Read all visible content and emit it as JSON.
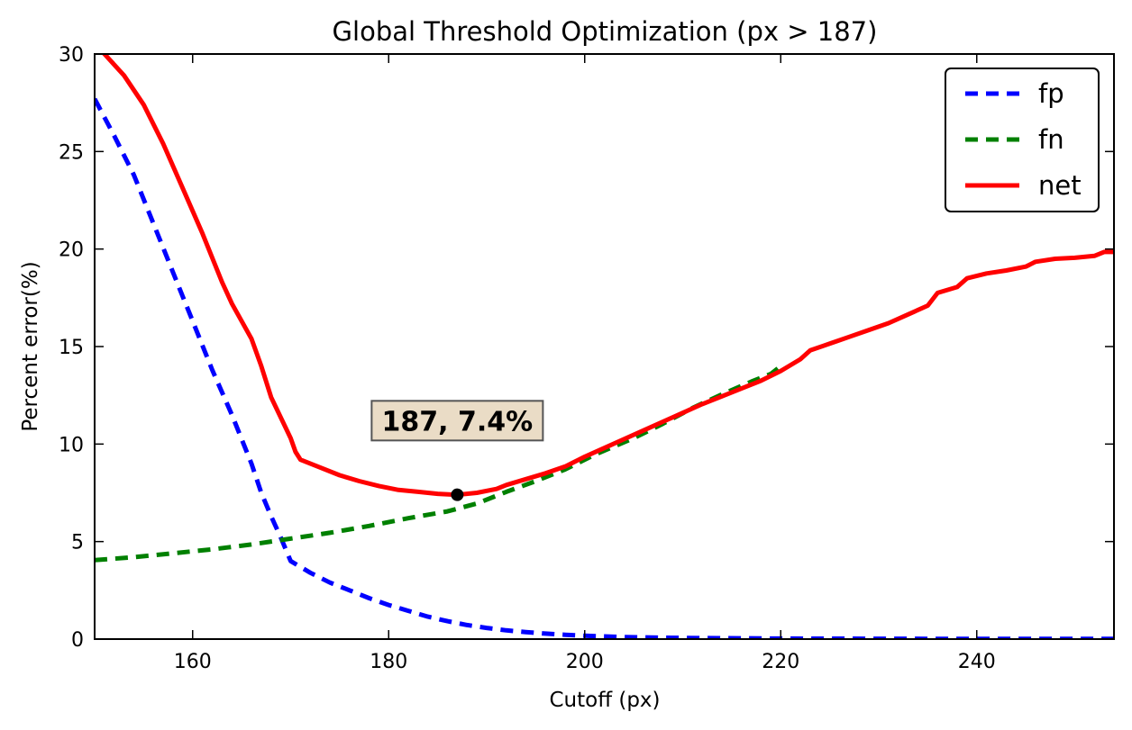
{
  "chart_data": {
    "type": "line",
    "title": "Global Threshold Optimization (px > 187)",
    "xlabel": "Cutoff (px)",
    "ylabel": "Percent error(%)",
    "xlim": [
      150,
      254
    ],
    "ylim": [
      0,
      30
    ],
    "xticks": [
      160,
      180,
      200,
      220,
      240
    ],
    "yticks": [
      0,
      5,
      10,
      15,
      20,
      25,
      30
    ],
    "grid": false,
    "legend_position": "top-right",
    "series": [
      {
        "name": "fp",
        "style": "dashed",
        "color": "#0000ff",
        "points": [
          [
            150,
            27.7
          ],
          [
            152,
            25.8
          ],
          [
            154,
            23.8
          ],
          [
            156,
            21.3
          ],
          [
            158,
            18.8
          ],
          [
            160,
            16.3
          ],
          [
            162,
            13.8
          ],
          [
            164,
            11.5
          ],
          [
            166,
            9.0
          ],
          [
            167,
            7.5
          ],
          [
            168,
            6.3
          ],
          [
            169,
            5.2
          ],
          [
            170,
            4.0
          ],
          [
            172,
            3.4
          ],
          [
            174,
            2.9
          ],
          [
            176,
            2.5
          ],
          [
            178,
            2.1
          ],
          [
            180,
            1.75
          ],
          [
            182,
            1.45
          ],
          [
            184,
            1.15
          ],
          [
            186,
            0.92
          ],
          [
            188,
            0.72
          ],
          [
            190,
            0.57
          ],
          [
            192,
            0.45
          ],
          [
            194,
            0.36
          ],
          [
            196,
            0.28
          ],
          [
            198,
            0.22
          ],
          [
            200,
            0.17
          ],
          [
            204,
            0.1
          ],
          [
            210,
            0.06
          ],
          [
            220,
            0.03
          ],
          [
            230,
            0.02
          ],
          [
            240,
            0.01
          ],
          [
            254,
            0.01
          ]
        ]
      },
      {
        "name": "fn",
        "style": "dashed",
        "color": "#008000",
        "points": [
          [
            150,
            4.05
          ],
          [
            154,
            4.2
          ],
          [
            158,
            4.4
          ],
          [
            162,
            4.6
          ],
          [
            166,
            4.85
          ],
          [
            170,
            5.15
          ],
          [
            174,
            5.45
          ],
          [
            178,
            5.8
          ],
          [
            182,
            6.2
          ],
          [
            186,
            6.55
          ],
          [
            189,
            6.95
          ],
          [
            192,
            7.55
          ],
          [
            195,
            8.1
          ],
          [
            198,
            8.7
          ],
          [
            201,
            9.45
          ],
          [
            205,
            10.3
          ],
          [
            208,
            11.05
          ],
          [
            211,
            11.85
          ],
          [
            214,
            12.55
          ],
          [
            217,
            13.2
          ],
          [
            219,
            13.6
          ],
          [
            220,
            14.0
          ]
        ]
      },
      {
        "name": "net",
        "style": "solid",
        "color": "#ff0000",
        "points": [
          [
            150,
            30.6
          ],
          [
            151,
            30.0
          ],
          [
            153,
            28.9
          ],
          [
            155,
            27.4
          ],
          [
            157,
            25.4
          ],
          [
            159,
            23.1
          ],
          [
            161,
            20.8
          ],
          [
            163,
            18.3
          ],
          [
            164,
            17.2
          ],
          [
            166,
            15.4
          ],
          [
            167,
            14.0
          ],
          [
            168,
            12.4
          ],
          [
            170,
            10.3
          ],
          [
            170.5,
            9.6
          ],
          [
            171,
            9.2
          ],
          [
            173,
            8.8
          ],
          [
            175,
            8.4
          ],
          [
            177,
            8.1
          ],
          [
            179,
            7.85
          ],
          [
            181,
            7.65
          ],
          [
            183,
            7.55
          ],
          [
            185,
            7.45
          ],
          [
            187,
            7.4
          ],
          [
            189,
            7.5
          ],
          [
            191,
            7.7
          ],
          [
            192,
            7.9
          ],
          [
            194,
            8.2
          ],
          [
            196,
            8.5
          ],
          [
            198,
            8.85
          ],
          [
            200,
            9.35
          ],
          [
            202,
            9.8
          ],
          [
            204,
            10.25
          ],
          [
            206,
            10.7
          ],
          [
            208,
            11.15
          ],
          [
            210,
            11.6
          ],
          [
            212,
            12.05
          ],
          [
            214,
            12.45
          ],
          [
            216,
            12.85
          ],
          [
            218,
            13.25
          ],
          [
            220,
            13.75
          ],
          [
            222,
            14.35
          ],
          [
            223,
            14.8
          ],
          [
            225,
            15.15
          ],
          [
            227,
            15.5
          ],
          [
            229,
            15.85
          ],
          [
            231,
            16.2
          ],
          [
            233,
            16.65
          ],
          [
            235,
            17.1
          ],
          [
            236,
            17.75
          ],
          [
            238,
            18.05
          ],
          [
            239,
            18.5
          ],
          [
            241,
            18.75
          ],
          [
            243,
            18.9
          ],
          [
            245,
            19.1
          ],
          [
            246,
            19.35
          ],
          [
            248,
            19.5
          ],
          [
            250,
            19.55
          ],
          [
            252,
            19.65
          ],
          [
            253,
            19.85
          ],
          [
            254,
            19.85
          ]
        ]
      }
    ],
    "marker": {
      "x": 187,
      "y": 7.4
    },
    "annotation": {
      "text": "187, 7.4%",
      "x": 187,
      "y": 11.2,
      "bg_color": "#e8d8c0"
    }
  }
}
